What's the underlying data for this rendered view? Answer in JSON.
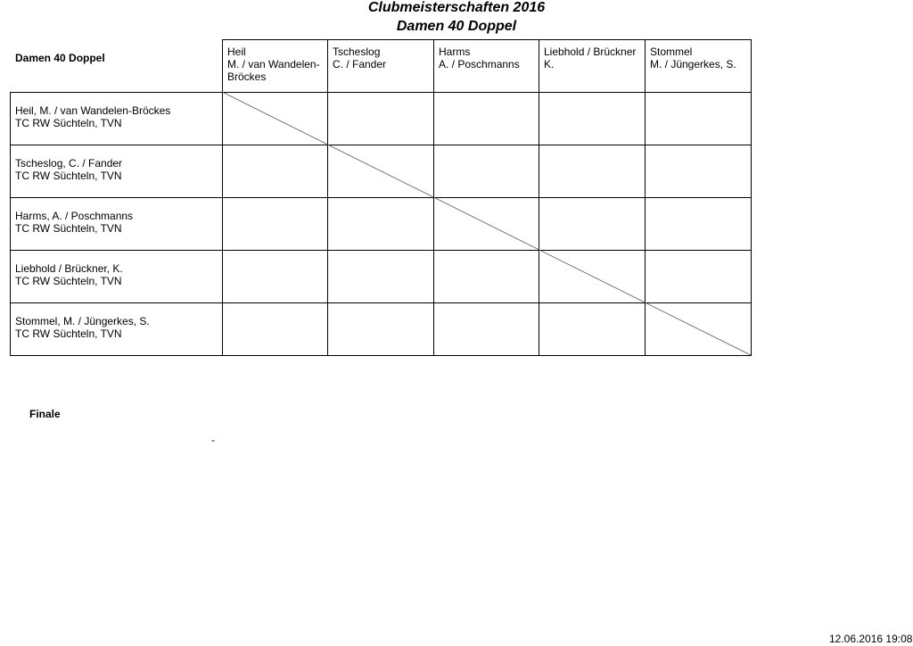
{
  "title": "Clubmeisterschaften 2016",
  "subtitle": "Damen 40 Doppel",
  "table": {
    "corner_label": "Damen 40 Doppel",
    "columns": [
      {
        "line1": "Heil",
        "line2": "M. / van Wandelen-Bröckes"
      },
      {
        "line1": "Tscheslog",
        "line2": "C. / Fander"
      },
      {
        "line1": "Harms",
        "line2": "A. / Poschmanns"
      },
      {
        "line1": "Liebhold / Brückner",
        "line2": "K."
      },
      {
        "line1": "Stommel",
        "line2": "M. / Jüngerkes, S."
      }
    ],
    "rows": [
      {
        "name": "Heil, M. / van Wandelen-Bröckes",
        "club": "TC RW Süchteln, TVN"
      },
      {
        "name": "Tscheslog, C. / Fander",
        "club": "TC RW Süchteln, TVN"
      },
      {
        "name": "Harms, A. / Poschmanns",
        "club": "TC RW Süchteln, TVN"
      },
      {
        "name": "Liebhold / Brückner, K.",
        "club": "TC RW Süchteln, TVN"
      },
      {
        "name": "Stommel, M. / Jüngerkes, S.",
        "club": "TC RW Süchteln, TVN"
      }
    ]
  },
  "finale": {
    "label": "Finale",
    "value": "-"
  },
  "footer": {
    "timestamp": "12.06.2016 19:08"
  }
}
